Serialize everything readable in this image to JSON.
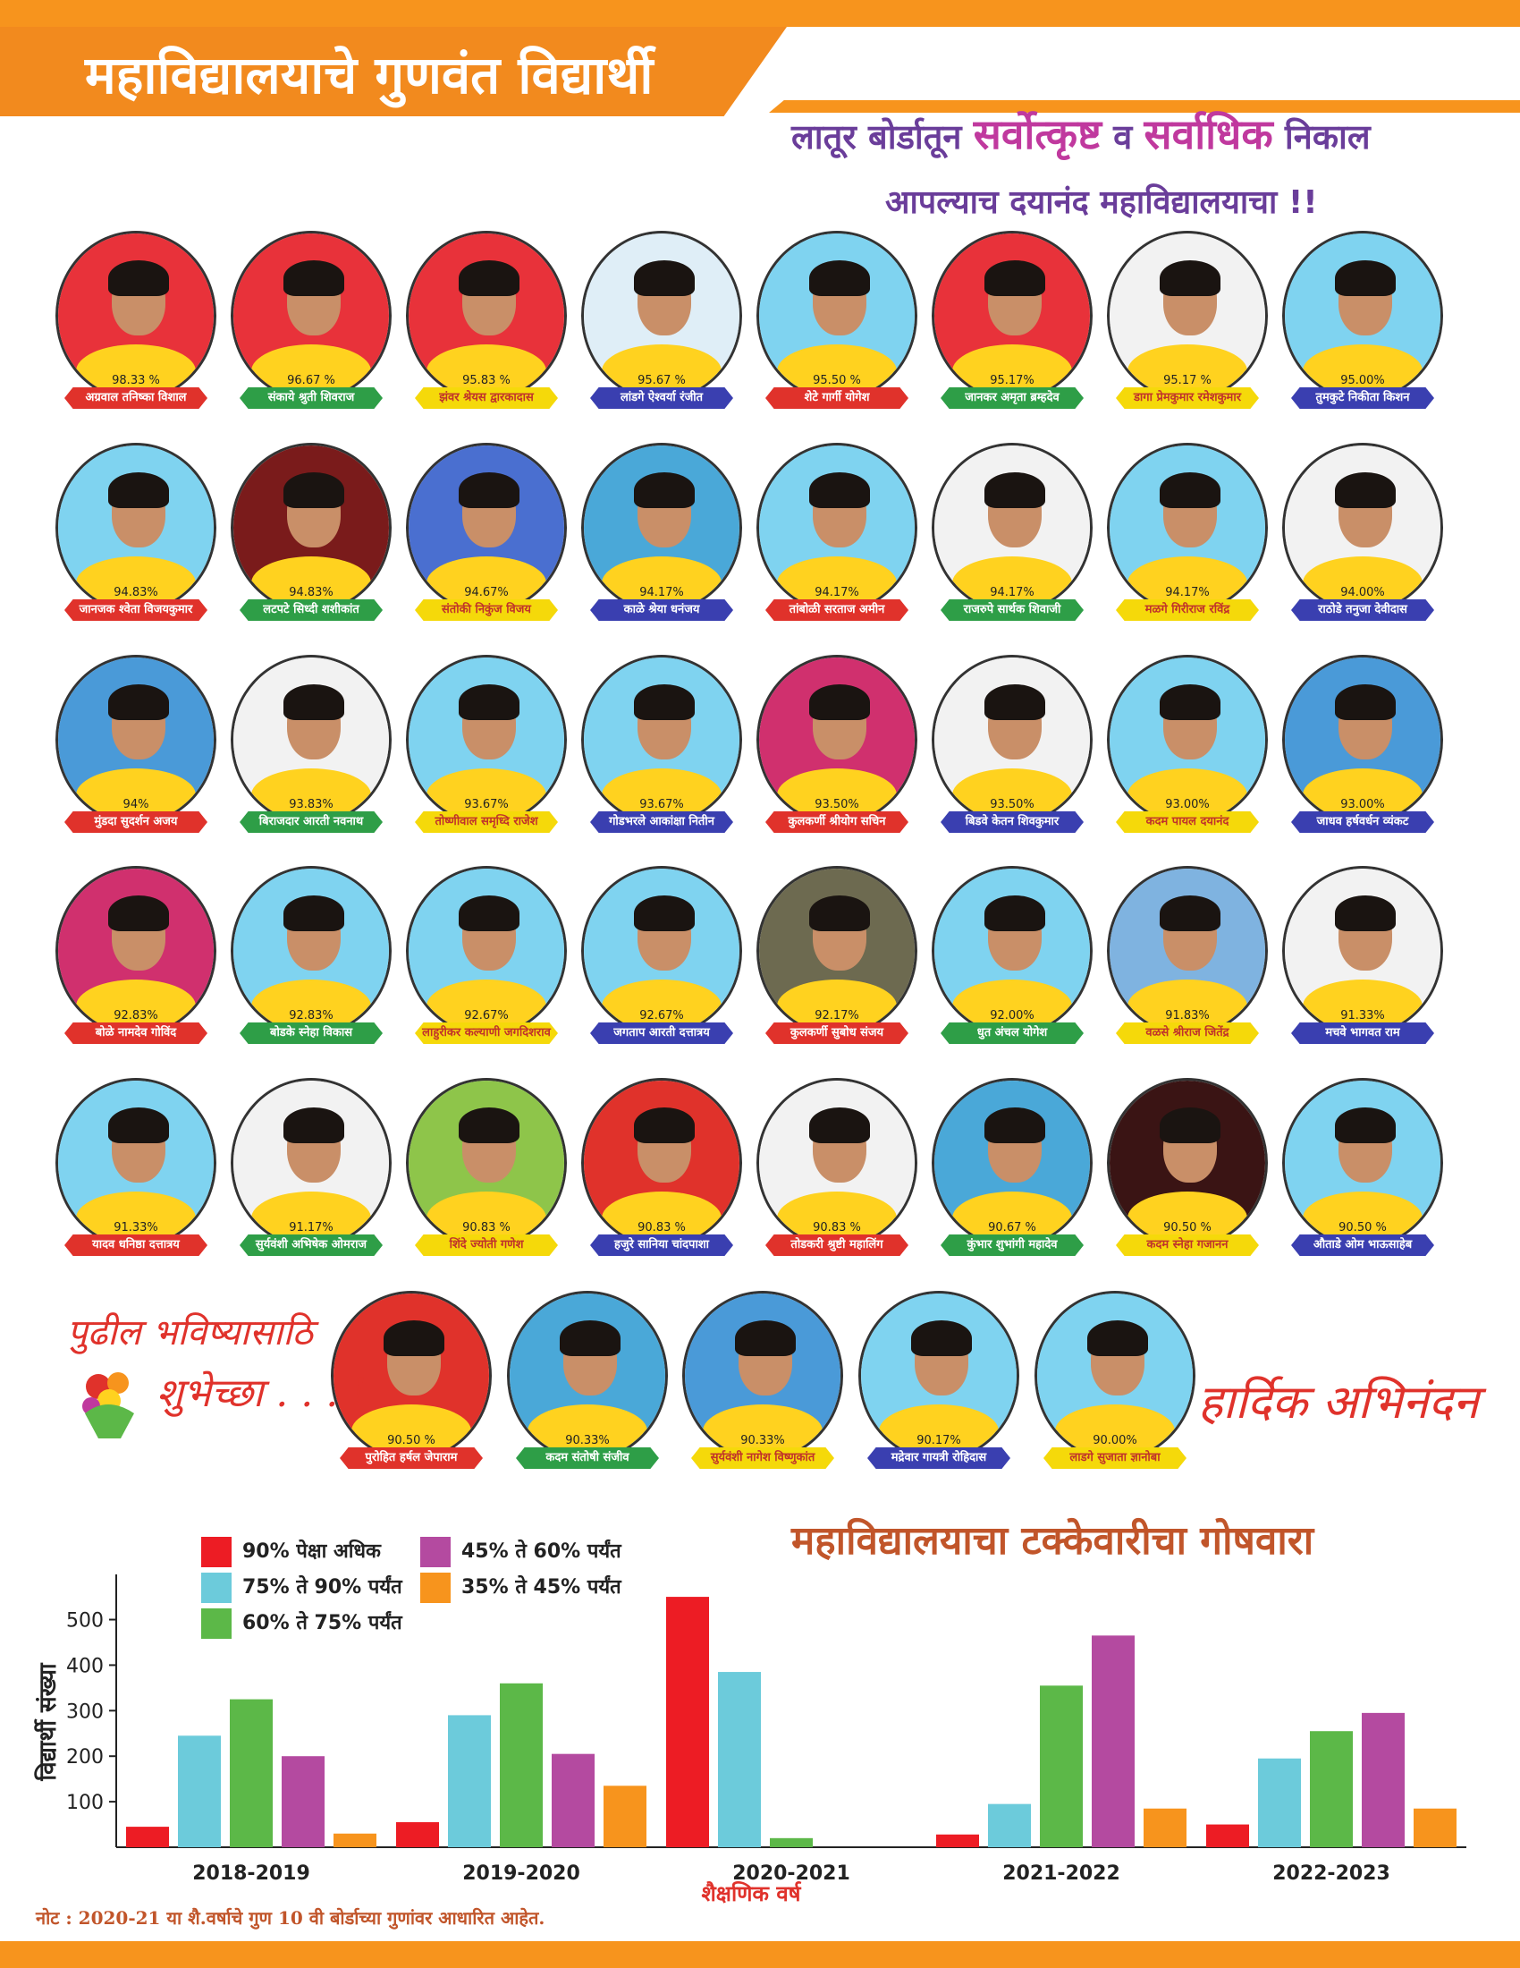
{
  "header": {
    "title": "महाविद्यालयाचे गुणवंत विद्यार्थी",
    "tagline_pre": "लातूर बोर्डातून",
    "tagline_hl1": "सर्वोत्कृष्ट",
    "tagline_mid": "व",
    "tagline_hl2": "सर्वाधिक",
    "tagline_post": "निकाल",
    "tagline2": "आपल्याच दयानंद महाविद्यालयाचा !!"
  },
  "students": [
    {
      "pct": "98.33 %",
      "name": "अग्रवाल तनिष्का विशाल",
      "color": "#e0322b",
      "bg": "#e8323a"
    },
    {
      "pct": "96.67 %",
      "name": "संकाये श्रुती शिवराज",
      "color": "#2e9e47",
      "bg": "#e8323a"
    },
    {
      "pct": "95.83 %",
      "name": "झंवर श्रेयस द्वारकादास",
      "color": "#f5d90a",
      "bg": "#e8323a"
    },
    {
      "pct": "95.67 %",
      "name": "लांडगे ऐश्वर्या रंजीत",
      "color": "#3a3fb0",
      "bg": "#dfeef7"
    },
    {
      "pct": "95.50 %",
      "name": "शेटे गार्गी योगेश",
      "color": "#e0322b",
      "bg": "#7fd3f0"
    },
    {
      "pct": "95.17%",
      "name": "जानकर अमृता ब्रम्हदेव",
      "color": "#2e9e47",
      "bg": "#e8323a"
    },
    {
      "pct": "95.17 %",
      "name": "डागा प्रेमकुमार रमेशकुमार",
      "color": "#f5d90a",
      "bg": "#f2f2f2"
    },
    {
      "pct": "95.00%",
      "name": "तुमकुटे निकीता किशन",
      "color": "#3a3fb0",
      "bg": "#7fd3f0"
    },
    {
      "pct": "94.83%",
      "name": "जानजक श्वेता विजयकुमार",
      "color": "#e0322b",
      "bg": "#7fd3f0"
    },
    {
      "pct": "94.83%",
      "name": "लटपटे सिध्दी शशीकांत",
      "color": "#2e9e47",
      "bg": "#7a1b1b"
    },
    {
      "pct": "94.67%",
      "name": "संतोकी निकुंज विजय",
      "color": "#f5d90a",
      "bg": "#4a6fd0"
    },
    {
      "pct": "94.17%",
      "name": "काळे श्रेया धनंजय",
      "color": "#3a3fb0",
      "bg": "#4aa8d8"
    },
    {
      "pct": "94.17%",
      "name": "तांबोळी सरताज अमीन",
      "color": "#e0322b",
      "bg": "#7fd3f0"
    },
    {
      "pct": "94.17%",
      "name": "राजरुपे सार्थक शिवाजी",
      "color": "#2e9e47",
      "bg": "#f2f2f2"
    },
    {
      "pct": "94.17%",
      "name": "मळगे गिरीराज रविंद्र",
      "color": "#f5d90a",
      "bg": "#7fd3f0"
    },
    {
      "pct": "94.00%",
      "name": "राठोडे तनुजा देवीदास",
      "color": "#3a3fb0",
      "bg": "#f2f2f2"
    },
    {
      "pct": "94%",
      "name": "मुंडदा सुदर्शन अजय",
      "color": "#e0322b",
      "bg": "#4a9ad8"
    },
    {
      "pct": "93.83%",
      "name": "बिराजदार आरती नवनाथ",
      "color": "#2e9e47",
      "bg": "#f2f2f2"
    },
    {
      "pct": "93.67%",
      "name": "तोष्णीवाल समृध्दि राजेश",
      "color": "#f5d90a",
      "bg": "#7fd3f0"
    },
    {
      "pct": "93.67%",
      "name": "गोडभरले आकांक्षा नितीन",
      "color": "#3a3fb0",
      "bg": "#7fd3f0"
    },
    {
      "pct": "93.50%",
      "name": "कुलकर्णी श्रीयोग सचिन",
      "color": "#e0322b",
      "bg": "#d0306e"
    },
    {
      "pct": "93.50%",
      "name": "बिडवे केतन शिवकुमार",
      "color": "#3a3fb0",
      "bg": "#f2f2f2"
    },
    {
      "pct": "93.00%",
      "name": "कदम पायल दयानंद",
      "color": "#f5d90a",
      "bg": "#7fd3f0"
    },
    {
      "pct": "93.00%",
      "name": "जाधव हर्षवर्धन व्यंकट",
      "color": "#3a3fb0",
      "bg": "#4a9ad8"
    },
    {
      "pct": "92.83%",
      "name": "बोळे नामदेव गोविंद",
      "color": "#e0322b",
      "bg": "#d0306e"
    },
    {
      "pct": "92.83%",
      "name": "बोडके स्नेहा विकास",
      "color": "#2e9e47",
      "bg": "#7fd3f0"
    },
    {
      "pct": "92.67%",
      "name": "लाहुरीकर कल्याणी जगदिशराव",
      "color": "#f5d90a",
      "bg": "#7fd3f0"
    },
    {
      "pct": "92.67%",
      "name": "जगताप आरती दत्तात्रय",
      "color": "#3a3fb0",
      "bg": "#7fd3f0"
    },
    {
      "pct": "92.17%",
      "name": "कुलकर्णी सुबोध संजय",
      "color": "#e0322b",
      "bg": "#6d6a50"
    },
    {
      "pct": "92.00%",
      "name": "धुत अंचल योगेश",
      "color": "#2e9e47",
      "bg": "#7fd3f0"
    },
    {
      "pct": "91.83%",
      "name": "वळसे श्रीराज जितेंद्र",
      "color": "#f5d90a",
      "bg": "#7fb3e0"
    },
    {
      "pct": "91.33%",
      "name": "मचवे भागवत राम",
      "color": "#3a3fb0",
      "bg": "#f2f2f2"
    },
    {
      "pct": "91.33%",
      "name": "यादव धनिष्ठा दत्तात्रय",
      "color": "#e0322b",
      "bg": "#7fd3f0"
    },
    {
      "pct": "91.17%",
      "name": "सुर्यवंशी अभिषेक ओमराज",
      "color": "#2e9e47",
      "bg": "#f2f2f2"
    },
    {
      "pct": "90.83 %",
      "name": "शिंदे ज्योती गणेश",
      "color": "#f5d90a",
      "bg": "#8ec54a"
    },
    {
      "pct": "90.83 %",
      "name": "हजुरे सानिया चांदपाशा",
      "color": "#3a3fb0",
      "bg": "#e0322b"
    },
    {
      "pct": "90.83 %",
      "name": "तोडकरी श्रुष्टी महालिंग",
      "color": "#e0322b",
      "bg": "#f2f2f2"
    },
    {
      "pct": "90.67 %",
      "name": "कुंभार शुभांगी महादेव",
      "color": "#2e9e47",
      "bg": "#4aa8d8"
    },
    {
      "pct": "90.50 %",
      "name": "कदम स्नेहा गजानन",
      "color": "#f5d90a",
      "bg": "#3a1414"
    },
    {
      "pct": "90.50 %",
      "name": "औताडे ओम भाऊसाहेब",
      "color": "#3a3fb0",
      "bg": "#7fd3f0"
    },
    {
      "pct": "90.50 %",
      "name": "पुरोहित हर्षल जेपाराम",
      "color": "#e0322b",
      "bg": "#e0322b"
    },
    {
      "pct": "90.33%",
      "name": "कदम संतोषी संजीव",
      "color": "#2e9e47",
      "bg": "#4aa8d8"
    },
    {
      "pct": "90.33%",
      "name": "सुर्यवंशी नागेश विष्णुकांत",
      "color": "#f5d90a",
      "bg": "#4a9ad8"
    },
    {
      "pct": "90.17%",
      "name": "मद्रेवार गायत्री रोहिदास",
      "color": "#3a3fb0",
      "bg": "#7fd3f0"
    },
    {
      "pct": "90.00%",
      "name": "लाडगे सुजाता ज्ञानोबा",
      "color": "#f5d90a",
      "bg": "#7fd3f0"
    }
  ],
  "wishes": {
    "line1": "पुढील भविष्यासाठि",
    "line2": "शुभेच्छा . . . !",
    "congrats": "हार्दिक अभिनंदन"
  },
  "chart_title": "महाविद्यालयाचा टक्केवारीचा गोषवारा",
  "note": "नोट : 2020-21 या शै.वर्षाचे गुण 10 वी बोर्डाच्या गुणांवर आधारित आहेत.",
  "chart_data": {
    "type": "bar",
    "categories": [
      "2018-2019",
      "2019-2020",
      "2020-2021",
      "2021-2022",
      "2022-2023"
    ],
    "xlabel": "शैक्षणिक वर्ष",
    "ylabel": "विद्यार्थी संख्या",
    "ylim": [
      0,
      560
    ],
    "yticks": [
      100,
      200,
      300,
      400,
      500
    ],
    "legend_placement": "top-left",
    "series": [
      {
        "name": "90% पेक्षा अधिक",
        "color": "#ed1c24",
        "values": [
          45,
          55,
          550,
          28,
          50
        ]
      },
      {
        "name": "75% ते 90% पर्यंत",
        "color": "#6ccbdb",
        "values": [
          245,
          290,
          385,
          95,
          195
        ]
      },
      {
        "name": "60% ते 75% पर्यंत",
        "color": "#5cb848",
        "values": [
          325,
          360,
          20,
          355,
          255
        ]
      },
      {
        "name": "45% ते 60% पर्यंत",
        "color": "#b44aa0",
        "values": [
          200,
          205,
          0,
          465,
          295
        ]
      },
      {
        "name": "35% ते 45% पर्यंत",
        "color": "#f7941d",
        "values": [
          30,
          135,
          0,
          85,
          85
        ]
      }
    ]
  }
}
